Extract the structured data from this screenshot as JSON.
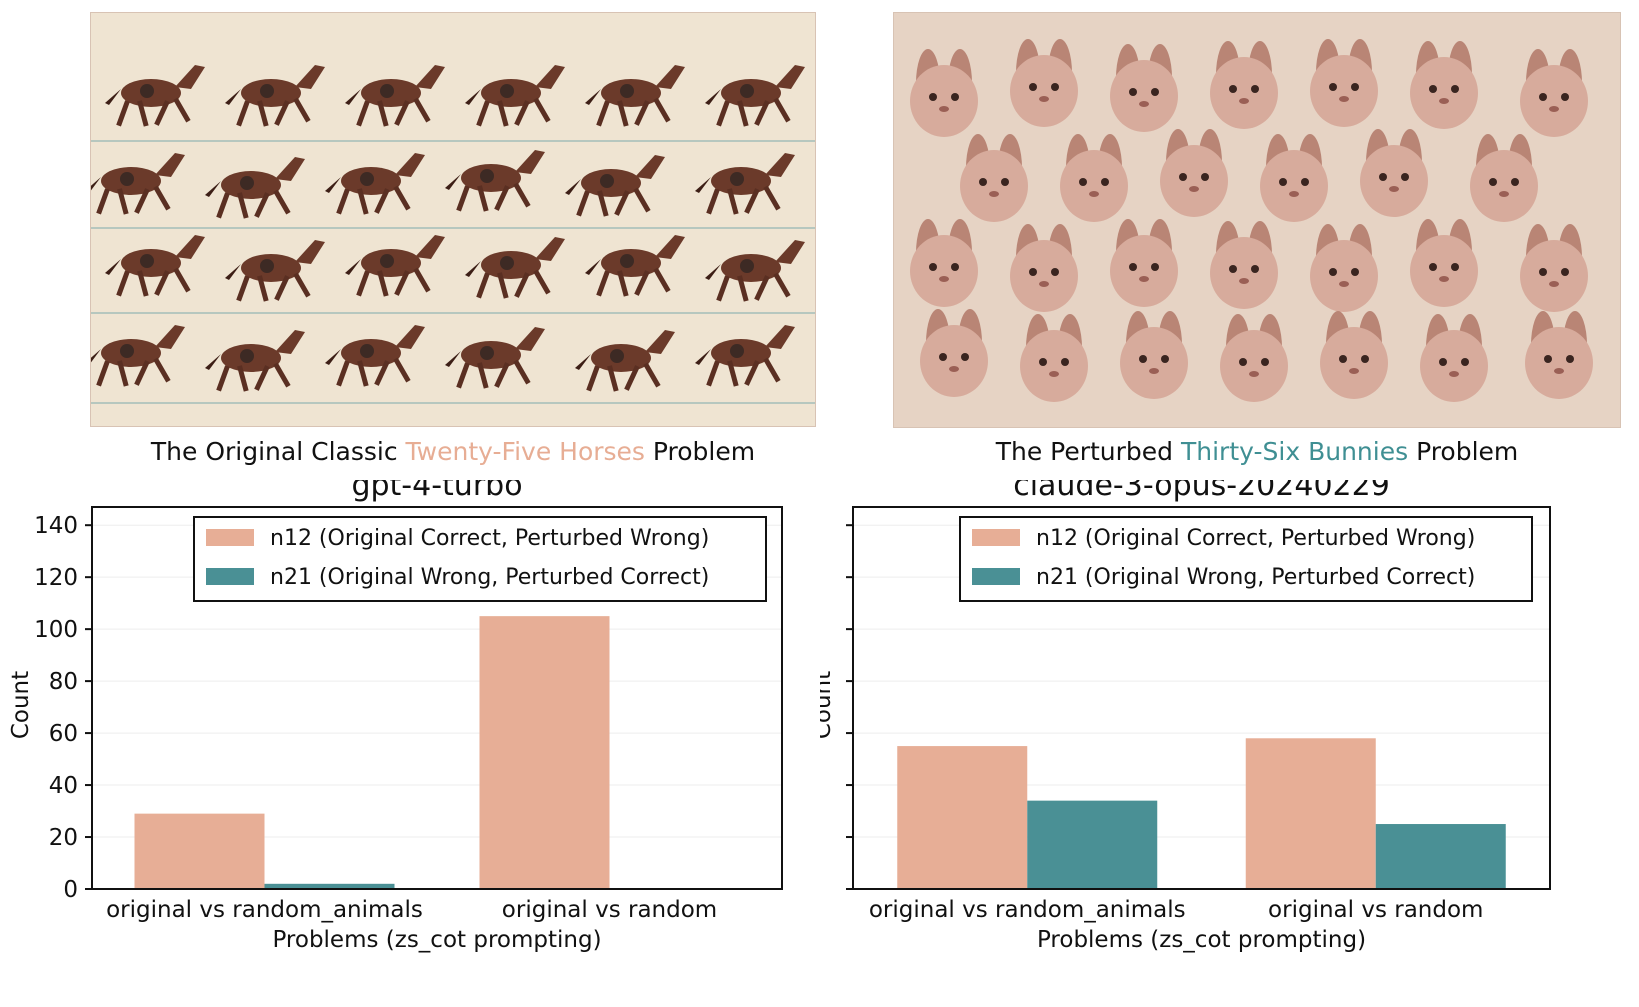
{
  "captions": {
    "left": {
      "prefix": "The Original Classic ",
      "highlight": "Twenty-Five Horses",
      "suffix": " Problem"
    },
    "right": {
      "prefix": "The Perturbed ",
      "highlight": "Thirty-Six Bunnies",
      "suffix": " Problem"
    }
  },
  "colors": {
    "n12": "#e7ae96",
    "n21": "#4a9095",
    "caption_a": "#e7ad94",
    "caption_b": "#3f8f93"
  },
  "chart_data": [
    {
      "type": "bar",
      "title": "gpt-4-turbo",
      "xlabel": "Problems (zs_cot prompting)",
      "ylabel": "Count",
      "ylim": [
        0,
        147
      ],
      "yticks": [
        0,
        20,
        40,
        60,
        80,
        100,
        120,
        140
      ],
      "categories": [
        "original vs random_animals",
        "original vs random"
      ],
      "series": [
        {
          "name": "n12 (Original Correct, Perturbed Wrong)",
          "values": [
            29,
            105
          ]
        },
        {
          "name": "n21 (Original Wrong, Perturbed Correct)",
          "values": [
            2,
            0
          ]
        }
      ],
      "legend": "top-right",
      "grid": true
    },
    {
      "type": "bar",
      "title": "claude-3-opus-20240229",
      "xlabel": "Problems (zs_cot prompting)",
      "ylabel": "Count",
      "ylim": [
        0,
        147
      ],
      "yticks": [
        0,
        20,
        40,
        60,
        80,
        100,
        120,
        140
      ],
      "show_ytick_labels": false,
      "categories": [
        "original vs random_animals",
        "original vs random"
      ],
      "series": [
        {
          "name": "n12 (Original Correct, Perturbed Wrong)",
          "values": [
            55,
            58
          ]
        },
        {
          "name": "n21 (Original Wrong, Perturbed Correct)",
          "values": [
            34,
            25
          ]
        }
      ],
      "legend": "top-right",
      "grid": true
    }
  ]
}
